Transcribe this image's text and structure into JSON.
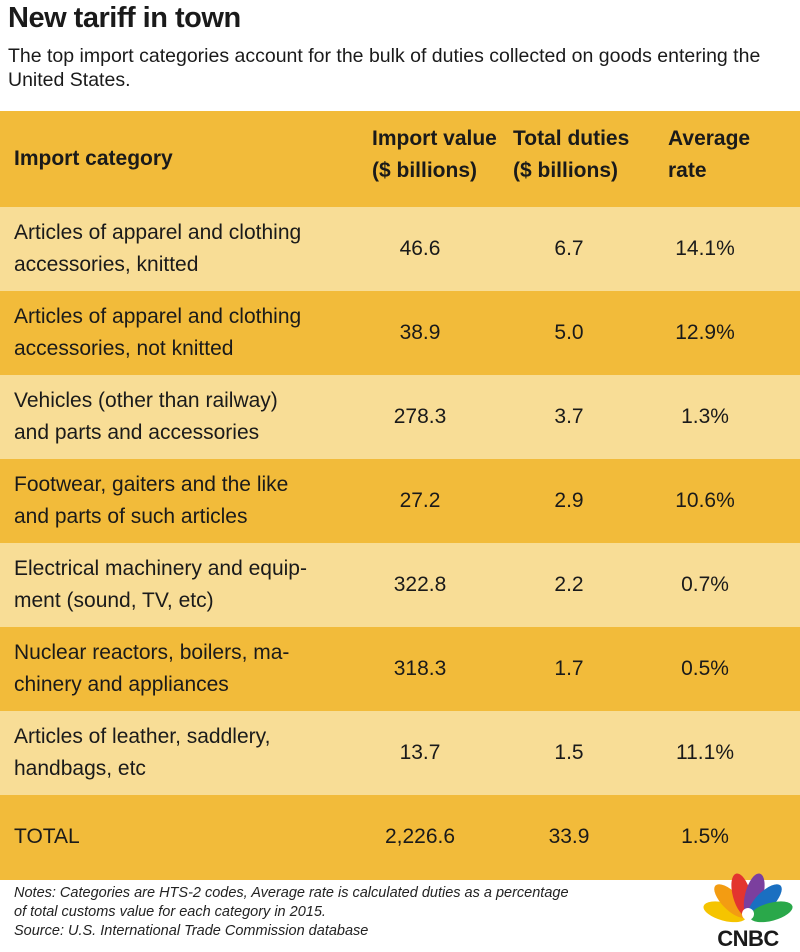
{
  "title": "New tariff in town",
  "subtitle": "The top import categories account for the bulk of duties collected on goods entering the United States.",
  "chart_data": {
    "type": "table",
    "columns": [
      "Import category",
      "Import value ($ billions)",
      "Total duties ($ billions)",
      "Average rate"
    ],
    "rows": [
      {
        "category": "Articles of apparel and clothing accessories, knitted",
        "import_value": "46.6",
        "total_duties": "6.7",
        "average_rate": "14.1%"
      },
      {
        "category": "Articles of apparel and clothing accessories, not knitted",
        "import_value": "38.9",
        "total_duties": "5.0",
        "average_rate": "12.9%"
      },
      {
        "category": "Vehicles (other than railway) and parts and accessories",
        "import_value": "278.3",
        "total_duties": "3.7",
        "average_rate": "1.3%"
      },
      {
        "category": "Footwear, gaiters and the like and parts of such articles",
        "import_value": "27.2",
        "total_duties": "2.9",
        "average_rate": "10.6%"
      },
      {
        "category": "Electrical machinery and equipment (sound, TV, etc)",
        "import_value": "322.8",
        "total_duties": "2.2",
        "average_rate": "0.7%"
      },
      {
        "category": "Nuclear reactors, boilers, machinery and appliances",
        "import_value": "318.3",
        "total_duties": "1.7",
        "average_rate": "0.5%"
      },
      {
        "category": "Articles of leather, saddlery, handbags, etc",
        "import_value": "13.7",
        "total_duties": "1.5",
        "average_rate": "11.1%"
      }
    ],
    "total": {
      "category": "TOTAL",
      "import_value": "2,226.6",
      "total_duties": "33.9",
      "average_rate": "1.5%"
    }
  },
  "header_lines": {
    "c0": [
      "Import category"
    ],
    "c1": [
      "Import value",
      "($ billions)"
    ],
    "c2": [
      "Total duties",
      "($ billions)"
    ],
    "c3": [
      "Average",
      "rate"
    ]
  },
  "category_lines": [
    [
      "Articles of apparel and clothing",
      "accessories, knitted"
    ],
    [
      "Articles of apparel and clothing",
      "accessories, not knitted"
    ],
    [
      "Vehicles (other than railway)",
      "and parts and accessories"
    ],
    [
      "Footwear, gaiters and the like",
      "and parts of such articles"
    ],
    [
      "Electrical machinery and equip-",
      "ment (sound, TV, etc)"
    ],
    [
      "Nuclear reactors, boilers, ma-",
      "chinery and appliances"
    ],
    [
      "Articles of leather, saddlery,",
      "handbags, etc"
    ]
  ],
  "notes": [
    "Notes: Categories are HTS-2 codes, Average rate is calculated duties as a percentage",
    "of total customs value for each category in 2015.",
    "Source: U.S. International Trade Commission database"
  ],
  "logo": {
    "text": "CNBC",
    "icon": "peacock-icon",
    "colors": [
      "#f5c400",
      "#f39c12",
      "#e3342f",
      "#7b3f9e",
      "#1a6fc1",
      "#2aa84a"
    ]
  },
  "colors": {
    "dark_row": "#f2bb3a",
    "light_row": "#f8dd96"
  }
}
